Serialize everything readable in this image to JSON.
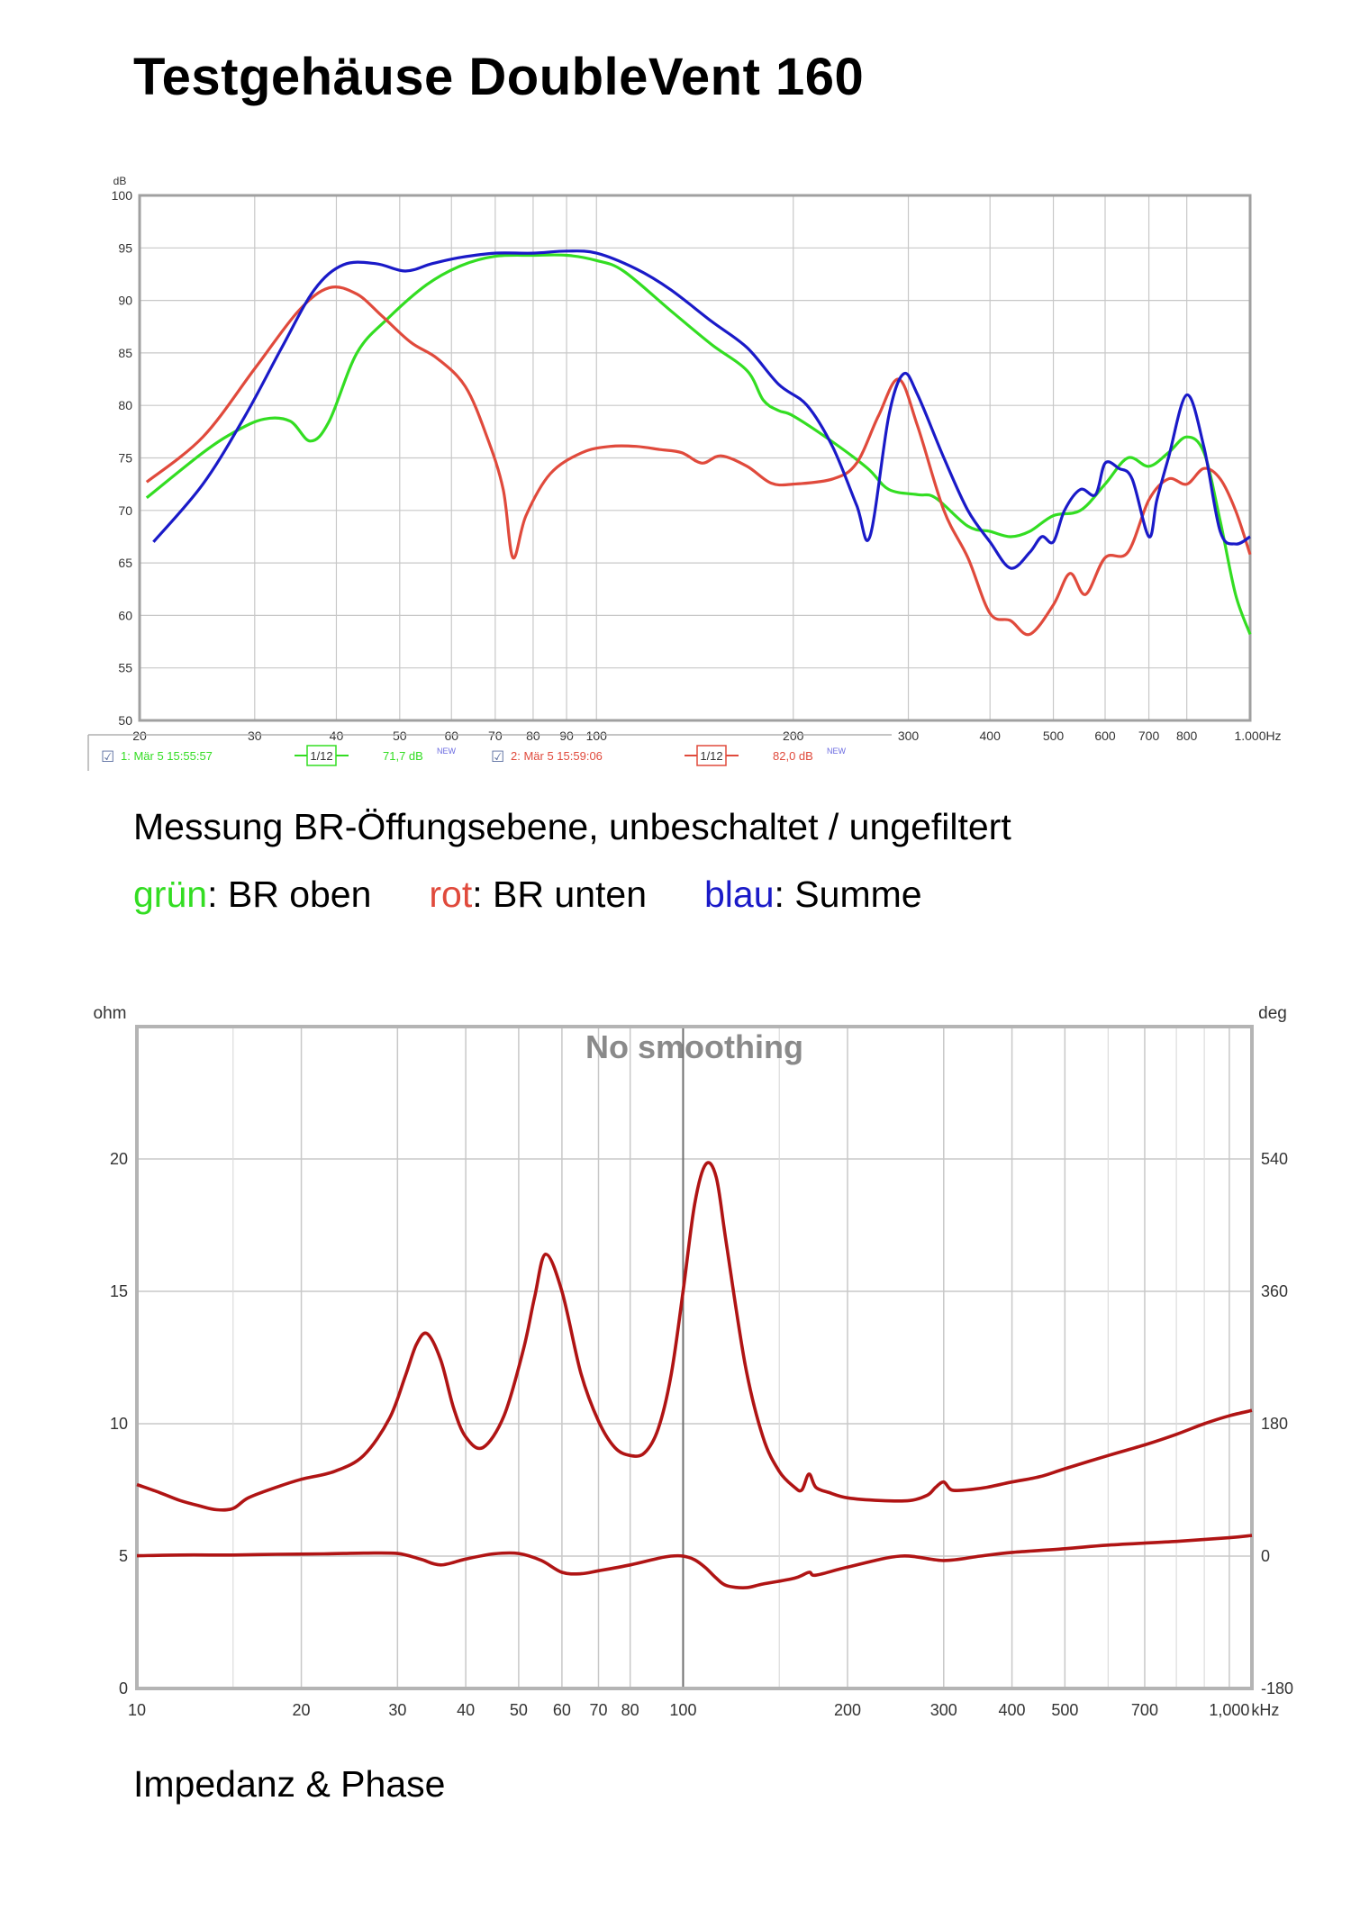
{
  "page": {
    "title": "Testgehäuse DoubleVent 160",
    "caption1": "Messung BR-Öffungsebene, unbeschaltet / ungefiltert",
    "legend_caption": {
      "green_word": "grün",
      "green_rest": ": BR oben",
      "red_word": "rot",
      "red_rest": ": BR unten",
      "blue_word": "blau",
      "blue_rest": ": Summe"
    },
    "caption3": "Impedanz & Phase"
  },
  "colors": {
    "green": "#33dd22",
    "red": "#e04a3c",
    "blue": "#1a1ac8",
    "darkred": "#b01414",
    "grid": "#c8c8c8"
  },
  "chart_data": [
    {
      "type": "line",
      "xscale": "log",
      "ylabel": "dB",
      "xlim": [
        20,
        1000
      ],
      "ylim": [
        50,
        100
      ],
      "yticks": [
        "100",
        "95",
        "90",
        "85",
        "80",
        "75",
        "70",
        "65",
        "60",
        "55",
        "50"
      ],
      "xticks": [
        {
          "v": 20,
          "t": "20"
        },
        {
          "v": 30,
          "t": "30"
        },
        {
          "v": 40,
          "t": "40"
        },
        {
          "v": 50,
          "t": "50"
        },
        {
          "v": 60,
          "t": "60"
        },
        {
          "v": 70,
          "t": "70"
        },
        {
          "v": 80,
          "t": "80"
        },
        {
          "v": 90,
          "t": "90"
        },
        {
          "v": 100,
          "t": "100"
        },
        {
          "v": 200,
          "t": "200"
        },
        {
          "v": 300,
          "t": "300"
        },
        {
          "v": 400,
          "t": "400"
        },
        {
          "v": 500,
          "t": "500"
        },
        {
          "v": 600,
          "t": "600"
        },
        {
          "v": 700,
          "t": "700"
        },
        {
          "v": 800,
          "t": "800"
        },
        {
          "v": 1000,
          "t": "1.000"
        }
      ],
      "xunit": "Hz",
      "legend": [
        {
          "check": "☑",
          "label": "1: Mär 5 15:55:57",
          "smooth": "1/12",
          "level": "71,7 dB",
          "tag": "NEW",
          "color": "green"
        },
        {
          "check": "☑",
          "label": "2: Mär 5 15:59:06",
          "smooth": "1/12",
          "level": "82,0 dB",
          "tag": "NEW",
          "color": "red"
        }
      ],
      "series": [
        {
          "color": "green",
          "x": [
            20.5,
            25,
            28,
            31,
            34,
            36.5,
            39,
            43,
            48,
            55,
            62,
            70,
            80,
            90,
            100,
            110,
            130,
            150,
            170,
            180,
            190,
            200,
            230,
            260,
            280,
            310,
            330,
            370,
            400,
            430,
            460,
            500,
            550,
            600,
            650,
            700,
            750,
            800,
            850,
            900,
            950,
            1000
          ],
          "y": [
            71.2,
            75.5,
            77.5,
            78.7,
            78.5,
            76.6,
            78.5,
            85,
            88.3,
            91.5,
            93.3,
            94.2,
            94.3,
            94.3,
            93.8,
            92.8,
            89,
            85.8,
            83.3,
            80.5,
            79.5,
            79,
            76.5,
            74,
            72,
            71.5,
            71.2,
            68.5,
            68,
            67.5,
            68,
            69.5,
            70,
            72.5,
            75,
            74.2,
            75.5,
            77,
            75.5,
            69,
            62,
            58.2
          ]
        },
        {
          "color": "red",
          "x": [
            20.5,
            25,
            30,
            35,
            39,
            43,
            47,
            52,
            57,
            63,
            68,
            72,
            74.5,
            78,
            85,
            95,
            105,
            115,
            125,
            135,
            145,
            155,
            170,
            185,
            200,
            230,
            250,
            270,
            290,
            310,
            340,
            370,
            400,
            430,
            460,
            500,
            530,
            560,
            600,
            650,
            700,
            750,
            800,
            850,
            900,
            950,
            1000
          ],
          "y": [
            72.7,
            77,
            83.5,
            89,
            91.2,
            90.6,
            88.5,
            86,
            84.5,
            81.8,
            77,
            72,
            65.5,
            69.5,
            73.5,
            75.5,
            76.1,
            76.1,
            75.8,
            75.5,
            74.5,
            75.2,
            74.2,
            72.6,
            72.5,
            73,
            74.5,
            79,
            82.5,
            78,
            70,
            65.5,
            60.2,
            59.5,
            58.2,
            61,
            64,
            62,
            65.5,
            66,
            71,
            73,
            72.5,
            74,
            73,
            70,
            65.8
          ]
        },
        {
          "color": "blue",
          "x": [
            21,
            25,
            29,
            33,
            37,
            41,
            46,
            51,
            56,
            62,
            70,
            80,
            90,
            100,
            115,
            130,
            150,
            170,
            190,
            210,
            230,
            250,
            262,
            280,
            295,
            310,
            340,
            370,
            400,
            430,
            460,
            480,
            500,
            520,
            550,
            580,
            600,
            630,
            660,
            700,
            720,
            750,
            800,
            850,
            900,
            950,
            1000
          ],
          "y": [
            67,
            72.5,
            79,
            85.5,
            91,
            93.4,
            93.5,
            92.8,
            93.5,
            94.1,
            94.5,
            94.5,
            94.7,
            94.5,
            93,
            91,
            88,
            85.5,
            82,
            80,
            76,
            70.5,
            67.5,
            79,
            83,
            81,
            75,
            70,
            67,
            64.5,
            66,
            67.5,
            67,
            70,
            72,
            71.5,
            74.5,
            74,
            73,
            67.5,
            71,
            75,
            81,
            76,
            68,
            66.8,
            67.5
          ]
        }
      ]
    },
    {
      "type": "line",
      "title": "No smoothing",
      "xscale": "log",
      "ylabel": "ohm",
      "y2label": "deg",
      "xlim": [
        10,
        1100
      ],
      "ylim": [
        0,
        25
      ],
      "yticks": [
        "20",
        "15",
        "10",
        "5",
        "0"
      ],
      "y2ticks": [
        "540",
        "360",
        "180",
        "0",
        "-180"
      ],
      "xticks": [
        {
          "v": 10,
          "t": "10"
        },
        {
          "v": 20,
          "t": "20"
        },
        {
          "v": 30,
          "t": "30"
        },
        {
          "v": 40,
          "t": "40"
        },
        {
          "v": 50,
          "t": "50"
        },
        {
          "v": 60,
          "t": "60"
        },
        {
          "v": 70,
          "t": "70"
        },
        {
          "v": 80,
          "t": "80"
        },
        {
          "v": 100,
          "t": "100"
        },
        {
          "v": 200,
          "t": "200"
        },
        {
          "v": 300,
          "t": "300"
        },
        {
          "v": 400,
          "t": "400"
        },
        {
          "v": 500,
          "t": "500"
        },
        {
          "v": 700,
          "t": "700"
        },
        {
          "v": 1000,
          "t": "1,000"
        }
      ],
      "xunit": "kHz",
      "series": [
        {
          "color": "darkred",
          "x": [
            10,
            11,
            12,
            13,
            14,
            15,
            16,
            18,
            20,
            23,
            26,
            29,
            31,
            32.5,
            34,
            36,
            38,
            40,
            43,
            47,
            51,
            53.5,
            56,
            60,
            65,
            70,
            75,
            80,
            85,
            90,
            95,
            100,
            105,
            110,
            115,
            120,
            130,
            140,
            150,
            160,
            165,
            170,
            175,
            185,
            200,
            230,
            260,
            280,
            290,
            300,
            310,
            330,
            360,
            400,
            450,
            500,
            600,
            700,
            800,
            900,
            1000,
            1100
          ],
          "y": [
            7.7,
            7.4,
            7.1,
            6.9,
            6.75,
            6.8,
            7.2,
            7.6,
            7.9,
            8.2,
            8.8,
            10.2,
            11.8,
            13,
            13.4,
            12.4,
            10.6,
            9.5,
            9.1,
            10.3,
            12.8,
            14.8,
            16.4,
            15,
            11.9,
            10.1,
            9.1,
            8.8,
            8.9,
            9.8,
            11.8,
            15,
            18.3,
            19.8,
            19.3,
            16.8,
            12.2,
            9.5,
            8.2,
            7.6,
            7.5,
            8.1,
            7.6,
            7.4,
            7.2,
            7.1,
            7.1,
            7.3,
            7.6,
            7.8,
            7.5,
            7.5,
            7.6,
            7.8,
            8,
            8.3,
            8.8,
            9.2,
            9.6,
            10,
            10.3,
            10.5
          ]
        },
        {
          "color": "darkred",
          "x": [
            10,
            12,
            15,
            18,
            22,
            26,
            30,
            33,
            36,
            40,
            45,
            50,
            55,
            60,
            65,
            70,
            80,
            90,
            95,
            100,
            105,
            110,
            115,
            120,
            130,
            140,
            160,
            170,
            175,
            200,
            250,
            300,
            350,
            400,
            500,
            600,
            800,
            1000,
            1100
          ],
          "y": [
            0.5,
            1.5,
            1.5,
            2.5,
            3,
            4,
            3.5,
            -4,
            -12,
            -4,
            3,
            3.5,
            -6,
            -22,
            -24,
            -20,
            -12,
            -3,
            0,
            0,
            -5,
            -16,
            -30,
            -40,
            -43,
            -38,
            -30,
            -22,
            -26,
            -15,
            0,
            -6,
            0,
            5,
            10,
            15,
            20,
            25,
            28
          ]
        }
      ]
    }
  ]
}
